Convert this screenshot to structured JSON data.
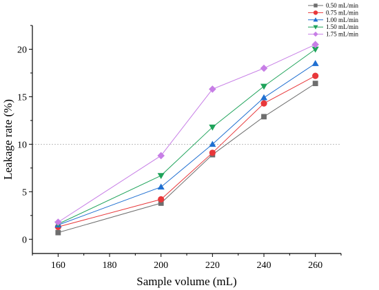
{
  "chart_data": {
    "type": "line",
    "xlabel": "Sample volume (mL)",
    "ylabel": "Leakage rate (%)",
    "x": [
      160,
      200,
      220,
      240,
      260
    ],
    "xticks": [
      160,
      180,
      200,
      220,
      240,
      260
    ],
    "xlim": [
      150,
      270
    ],
    "yticks": [
      0,
      5,
      10,
      15,
      20
    ],
    "ylim": [
      -1.5,
      22.5
    ],
    "reference_line_y": 10,
    "legend_placement": "top-right",
    "series": [
      {
        "name": "0.50 mL/min",
        "color": "#6e6e6e",
        "marker": "square",
        "values": [
          0.7,
          3.8,
          8.9,
          12.9,
          16.4
        ]
      },
      {
        "name": "0.75 mL/min",
        "color": "#e8373a",
        "marker": "circle",
        "values": [
          1.3,
          4.2,
          9.1,
          14.3,
          17.2
        ]
      },
      {
        "name": "1.00 mL/min",
        "color": "#1f6fd1",
        "marker": "triangle-up",
        "values": [
          1.5,
          5.5,
          10.0,
          14.9,
          18.5
        ]
      },
      {
        "name": "1.50 mL/min",
        "color": "#1ea35a",
        "marker": "triangle-down",
        "values": [
          1.6,
          6.7,
          11.8,
          16.1,
          20.0
        ]
      },
      {
        "name": "1.75 mL/min",
        "color": "#c77ee6",
        "marker": "diamond",
        "values": [
          1.8,
          8.8,
          15.8,
          18.0,
          20.5
        ]
      }
    ]
  }
}
